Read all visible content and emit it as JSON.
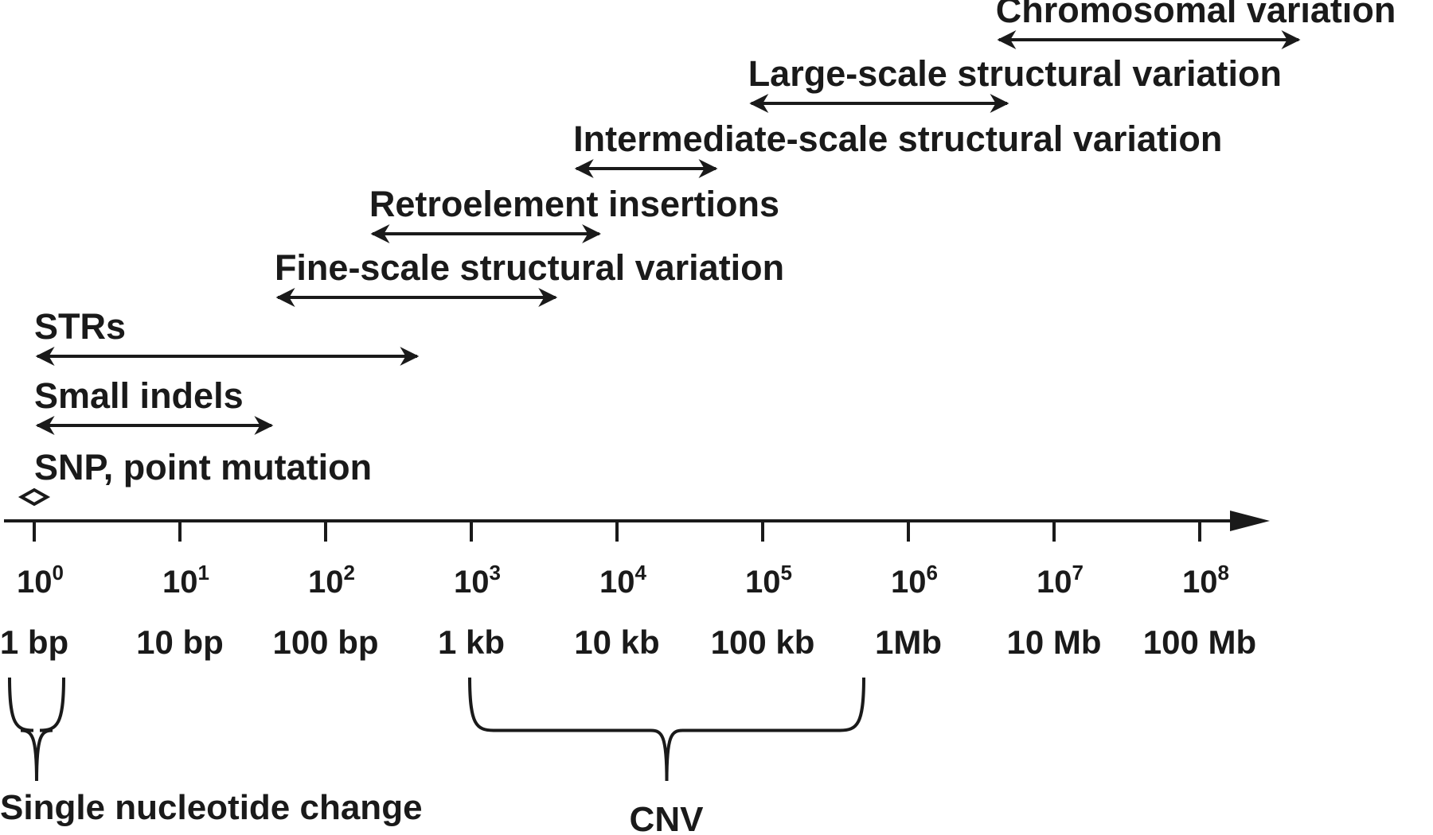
{
  "variants": [
    {
      "label": "Chromosomal variation",
      "from_exp": 6.6,
      "to_exp": 8.7
    },
    {
      "label": "Large-scale structural variation",
      "from_exp": 4.9,
      "to_exp": 6.7
    },
    {
      "label": "Intermediate-scale structural variation",
      "from_exp": 3.7,
      "to_exp": 4.7
    },
    {
      "label": "Retroelement insertions",
      "from_exp": 2.3,
      "to_exp": 3.9
    },
    {
      "label": "Fine-scale structural variation",
      "from_exp": 1.65,
      "to_exp": 3.6
    },
    {
      "label": "STRs",
      "from_exp": 0,
      "to_exp": 2.65
    },
    {
      "label": "Small indels",
      "from_exp": 0,
      "to_exp": 1.65
    },
    {
      "label": "SNP, point mutation",
      "from_exp": 0,
      "to_exp": 0.1
    }
  ],
  "axis": {
    "base": "10",
    "ticks": [
      {
        "exp": "0",
        "size": "1 bp"
      },
      {
        "exp": "1",
        "size": "10 bp"
      },
      {
        "exp": "2",
        "size": "100 bp"
      },
      {
        "exp": "3",
        "size": "1 kb"
      },
      {
        "exp": "4",
        "size": "10 kb"
      },
      {
        "exp": "5",
        "size": "100 kb"
      },
      {
        "exp": "6",
        "size": "1Mb"
      },
      {
        "exp": "7",
        "size": "10 Mb"
      },
      {
        "exp": "8",
        "size": "100 Mb"
      }
    ]
  },
  "braces": [
    {
      "label": "Single nucleotide change",
      "from_exp": -0.2,
      "to_exp": 0.2
    },
    {
      "label": "CNV",
      "from_exp": 3.0,
      "to_exp": 5.6
    }
  ]
}
